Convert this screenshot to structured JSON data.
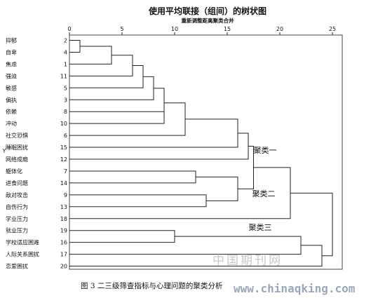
{
  "title": "使用平均联接（组间）的树状图",
  "subtitle": "重新调整距离聚类合并",
  "axis_ticks": [
    "0",
    "5",
    "10",
    "15",
    "20",
    "25"
  ],
  "y_axis_label": "Y",
  "leaves": [
    {
      "label": "抑郁",
      "index": "2"
    },
    {
      "label": "自卑",
      "index": "4"
    },
    {
      "label": "焦虑",
      "index": "1"
    },
    {
      "label": "强迫",
      "index": "11"
    },
    {
      "label": "敏感",
      "index": "5"
    },
    {
      "label": "偏执",
      "index": "3"
    },
    {
      "label": "依赖",
      "index": "8"
    },
    {
      "label": "冲动",
      "index": "10"
    },
    {
      "label": "社交恐惧",
      "index": "6"
    },
    {
      "label": "睡眠困扰",
      "index": "15"
    },
    {
      "label": "网络成瘾",
      "index": "12"
    },
    {
      "label": "躯体化",
      "index": "7"
    },
    {
      "label": "进食问题",
      "index": "14"
    },
    {
      "label": "敌对攻击",
      "index": "9"
    },
    {
      "label": "自伤行为",
      "index": "13"
    },
    {
      "label": "学业压力",
      "index": "18"
    },
    {
      "label": "就业压力",
      "index": "19"
    },
    {
      "label": "学校适应困难",
      "index": "16"
    },
    {
      "label": "人际关系困扰",
      "index": "17"
    },
    {
      "label": "恋爱困扰",
      "index": "20"
    }
  ],
  "cluster_labels": [
    "聚类一",
    "聚类二",
    "聚类三"
  ],
  "merges": [
    {
      "a": 0,
      "b": 1,
      "dist": 1
    },
    {
      "a": 20,
      "b": 2,
      "dist": 4
    },
    {
      "a": 21,
      "b": 3,
      "dist": 6
    },
    {
      "a": 22,
      "b": 4,
      "dist": 7
    },
    {
      "a": 23,
      "b": 5,
      "dist": 8
    },
    {
      "a": 6,
      "b": 7,
      "dist": 9
    },
    {
      "a": 24,
      "b": 25,
      "dist": 9
    },
    {
      "a": 26,
      "b": 8,
      "dist": 11
    },
    {
      "a": 27,
      "b": 9,
      "dist": 16
    },
    {
      "a": 11,
      "b": 12,
      "dist": 12
    },
    {
      "a": 13,
      "b": 14,
      "dist": 13
    },
    {
      "a": 29,
      "b": 30,
      "dist": 16
    },
    {
      "a": 28,
      "b": 10,
      "dist": 17
    },
    {
      "a": 32,
      "b": 31,
      "dist": 17.5
    },
    {
      "a": 33,
      "b": 15,
      "dist": 21
    },
    {
      "a": 16,
      "b": 17,
      "dist": 10
    },
    {
      "a": 35,
      "b": 18,
      "dist": 22
    },
    {
      "a": 36,
      "b": 19,
      "dist": 24
    },
    {
      "a": 34,
      "b": 37,
      "dist": 25
    },
    {
      "a": 15,
      "b": 16,
      "dist": 10
    }
  ],
  "caption": "图 3  二三级筛查指标与心理问题的聚类分析",
  "watermark_cn": "中国期刊网",
  "watermark_url": "www.chinaqking.com"
}
